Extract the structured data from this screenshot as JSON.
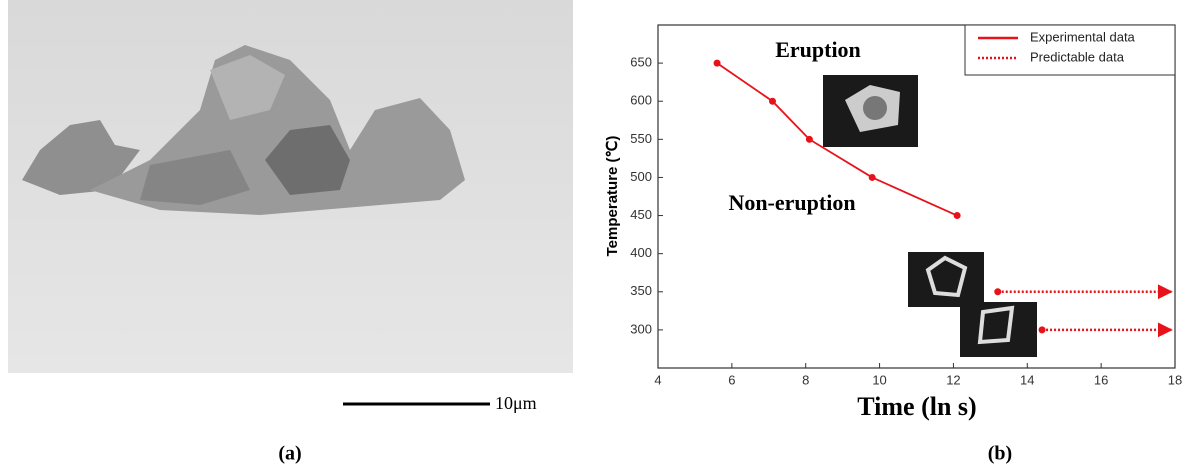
{
  "panels": {
    "a": {
      "label": "(a)",
      "scale_bar": "10μm"
    },
    "b": {
      "label": "(b)"
    }
  },
  "chart_data": {
    "type": "line",
    "xlabel": "Time   (ln s)",
    "ylabel": "Temperature (℃)",
    "annotations": {
      "eruption": "Eruption",
      "non_eruption": "Non-eruption"
    },
    "xlim": [
      4,
      18
    ],
    "xticks": [
      4,
      6,
      8,
      10,
      12,
      14,
      16,
      18
    ],
    "ylim": [
      250,
      700
    ],
    "yticks": [
      300,
      350,
      400,
      450,
      500,
      550,
      600,
      650
    ],
    "legend": "top-right",
    "series": [
      {
        "name": "Experimental data",
        "color": "#e8121a",
        "style": "solid",
        "x": [
          5.6,
          7.1,
          8.1,
          9.8,
          12.1
        ],
        "values": [
          650,
          600,
          550,
          500,
          450
        ]
      },
      {
        "name": "Predictable data",
        "color": "#e8121a",
        "style": "dotted",
        "x": [
          13.2,
          17.9,
          null,
          14.4,
          17.9
        ],
        "values": [
          350,
          350,
          null,
          300,
          300
        ]
      }
    ]
  }
}
